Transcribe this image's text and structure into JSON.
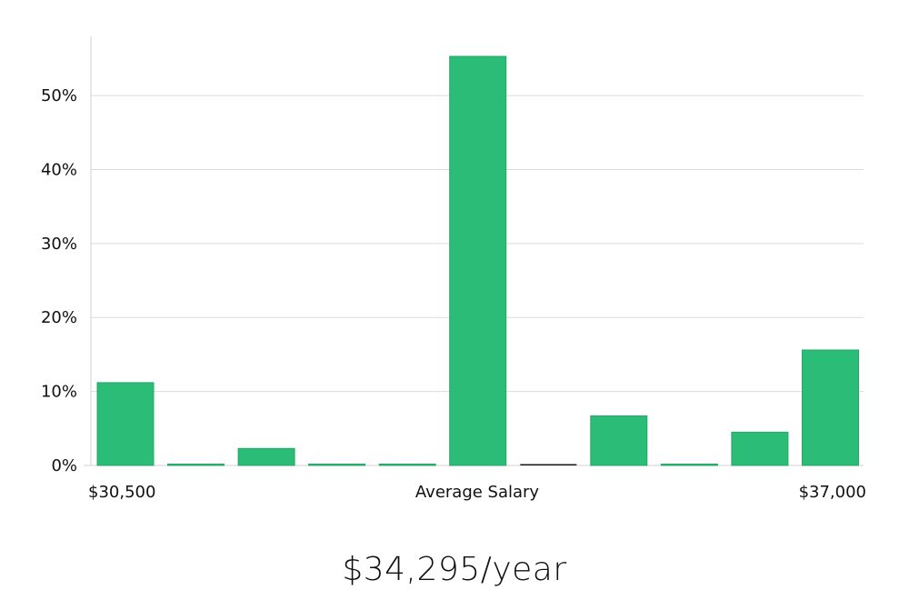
{
  "chart_data": {
    "type": "bar",
    "bar_color": "#2bbd77",
    "baseline_marker_color": "#1a1a1a",
    "ylim": [
      0,
      58
    ],
    "yticks": [
      0,
      10,
      20,
      30,
      40,
      50
    ],
    "ytick_labels": [
      "0%",
      "10%",
      "20%",
      "30%",
      "40%",
      "50%"
    ],
    "grid": true,
    "values": [
      11.2,
      0.1,
      2.3,
      0.1,
      0.1,
      55.3,
      0.1,
      6.7,
      0.1,
      4.5,
      15.6
    ],
    "average_bin_index": 6,
    "x_min_label": "$30,500",
    "xlabel": "Average Salary",
    "x_max_label": "$37,000"
  },
  "average_salary_text": "$34,295/year"
}
